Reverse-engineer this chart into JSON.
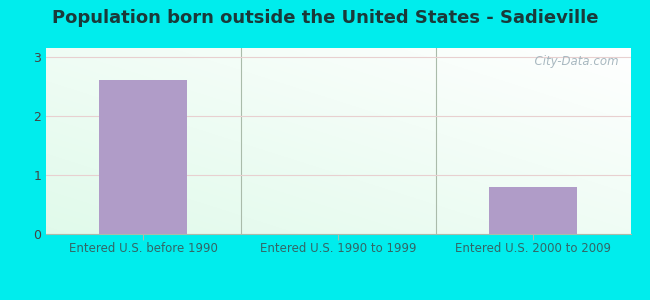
{
  "title": "Population born outside the United States - Sadieville",
  "categories": [
    "Entered U.S. before 1990",
    "Entered U.S. 1990 to 1999",
    "Entered U.S. 2000 to 2009"
  ],
  "values": [
    2.6,
    0,
    0.8
  ],
  "bar_color": "#b09cc8",
  "outer_bg": "#00eded",
  "plot_bg_color": "#e8f5ee",
  "title_fontsize": 13,
  "title_color": "#1a3a3a",
  "tick_label_color": "#336666",
  "ytick_color": "#444444",
  "yticks": [
    0,
    1,
    2,
    3
  ],
  "ylim": [
    0,
    3.15
  ],
  "xlim": [
    -0.5,
    2.5
  ],
  "watermark_text": "  City-Data.com",
  "watermark_color": "#a8b8c0",
  "grid_color": "#ddeeee",
  "bar_width": 0.45
}
